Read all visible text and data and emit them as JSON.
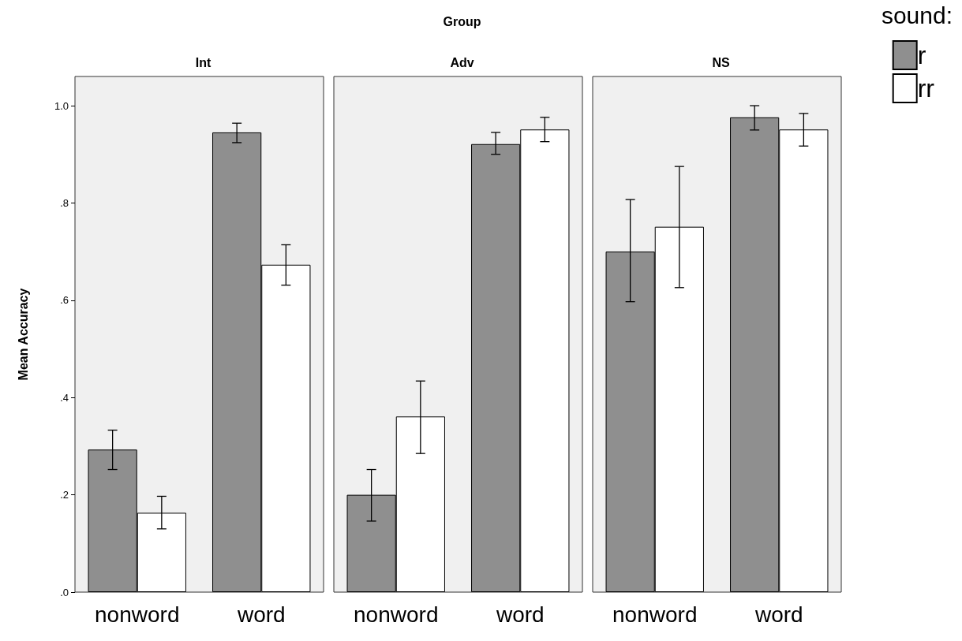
{
  "chart_data": [
    {
      "type": "bar",
      "subtitle": "Int",
      "ylabel": "Mean Accuracy",
      "categories": [
        "nonword",
        "word"
      ],
      "ylim": [
        0,
        1.06
      ],
      "yticks": [
        {
          "value": 0,
          "label": ".0"
        },
        {
          "value": 0.2,
          "label": ".2"
        },
        {
          "value": 0.4,
          "label": ".4"
        },
        {
          "value": 0.6,
          "label": ".6"
        },
        {
          "value": 0.8,
          "label": ".8"
        },
        {
          "value": 1,
          "label": "1.0"
        }
      ],
      "series": [
        {
          "color": "#8f8f8f",
          "values": [
            0.293,
            0.945
          ],
          "errors": [
            [
              0.252,
              0.333
            ],
            [
              0.924,
              0.964
            ]
          ]
        },
        {
          "color": "#ffffff",
          "values": [
            0.163,
            0.673
          ],
          "errors": [
            [
              0.13,
              0.197
            ],
            [
              0.631,
              0.714
            ]
          ]
        }
      ]
    },
    {
      "type": "bar",
      "title": "Group",
      "subtitle": "Adv",
      "categories": [
        "nonword",
        "word"
      ],
      "ylim": [
        0,
        1.06
      ],
      "tick_labels": "x",
      "series": [
        {
          "color": "#8f8f8f",
          "values": [
            0.2,
            0.921
          ],
          "errors": [
            [
              0.146,
              0.252
            ],
            [
              0.9,
              0.945
            ]
          ]
        },
        {
          "color": "#ffffff",
          "values": [
            0.361,
            0.951
          ],
          "errors": [
            [
              0.285,
              0.434
            ],
            [
              0.926,
              0.976
            ]
          ]
        }
      ]
    },
    {
      "type": "bar",
      "subtitle": "NS",
      "categories": [
        "nonword",
        "word"
      ],
      "ylim": [
        0,
        1.06
      ],
      "tick_labels": "x",
      "legend": "top right",
      "legend_title": "sound:",
      "series": [
        {
          "name": "r",
          "color": "#8f8f8f",
          "values": [
            0.7,
            0.976
          ],
          "errors": [
            [
              0.597,
              0.807
            ],
            [
              0.95,
              1.0
            ]
          ]
        },
        {
          "name": "rr",
          "color": "#ffffff",
          "values": [
            0.751,
            0.951
          ],
          "errors": [
            [
              0.626,
              0.875
            ],
            [
              0.917,
              0.984
            ]
          ]
        }
      ]
    }
  ]
}
